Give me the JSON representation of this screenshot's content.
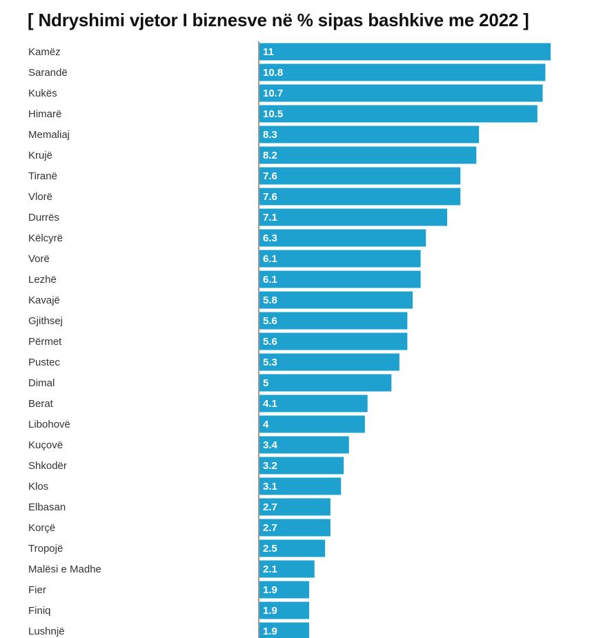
{
  "chart_data": {
    "type": "bar",
    "orientation": "horizontal",
    "title": "[ Ndryshimi vjetor I biznesve në % sipas bashkive me 2022 ]",
    "bar_color": "#1ea1cf",
    "value_label_color": "#ffffff",
    "xlim": [
      0,
      11
    ],
    "grid": false,
    "categories": [
      "Kamëz",
      "Sarandë",
      "Kukës",
      "Himarë",
      "Memaliaj",
      "Krujë",
      "Tiranë",
      "Vlorë",
      "Durrës",
      "Këlcyrë",
      "Vorë",
      "Lezhë",
      "Kavajë",
      "Gjithsej",
      "Përmet",
      "Pustec",
      "Dimal",
      "Berat",
      "Libohovë",
      "Kuçovë",
      "Shkodër",
      "Klos",
      "Elbasan",
      "Korçë",
      "Tropojë",
      "Malësi e Madhe",
      "Fier",
      "Finiq",
      "Lushnjë"
    ],
    "values": [
      11,
      10.8,
      10.7,
      10.5,
      8.3,
      8.2,
      7.6,
      7.6,
      7.1,
      6.3,
      6.1,
      6.1,
      5.8,
      5.6,
      5.6,
      5.3,
      5,
      4.1,
      4,
      3.4,
      3.2,
      3.1,
      2.7,
      2.7,
      2.5,
      2.1,
      1.9,
      1.9,
      1.9
    ]
  }
}
